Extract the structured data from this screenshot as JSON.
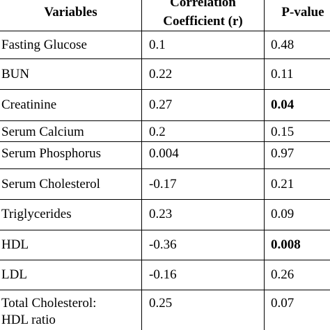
{
  "header": {
    "variables": "Variables",
    "correlation_line1": "Correlation",
    "correlation_line2": "Coefficient (r)",
    "pvalue": "P-value"
  },
  "rows": [
    {
      "variable": "Fasting Glucose",
      "r": "0.1",
      "p": "0.48",
      "p_bold": false
    },
    {
      "variable": "BUN",
      "r": "0.22",
      "p": "0.11",
      "p_bold": false
    },
    {
      "variable": "Creatinine",
      "r": "0.27",
      "p": "0.04",
      "p_bold": true
    },
    {
      "variable": "Serum Calcium",
      "r": "0.2",
      "p": "0.15",
      "p_bold": false
    },
    {
      "variable": "Serum Phosphorus",
      "r": "0.004",
      "p": "0.97",
      "p_bold": false
    },
    {
      "variable": "Serum Cholesterol",
      "r": "-0.17",
      "p": "0.21",
      "p_bold": false
    },
    {
      "variable": "Triglycerides",
      "r": "0.23",
      "p": "0.09",
      "p_bold": false
    },
    {
      "variable": "HDL",
      "r": "-0.36",
      "p": "0.008",
      "p_bold": true
    },
    {
      "variable": "LDL",
      "r": "-0.16",
      "p": "0.26",
      "p_bold": false
    },
    {
      "variable": "Total Cholesterol:",
      "variable_line2": "HDL ratio",
      "r": "0.25",
      "p": "0.07",
      "p_bold": false
    }
  ]
}
